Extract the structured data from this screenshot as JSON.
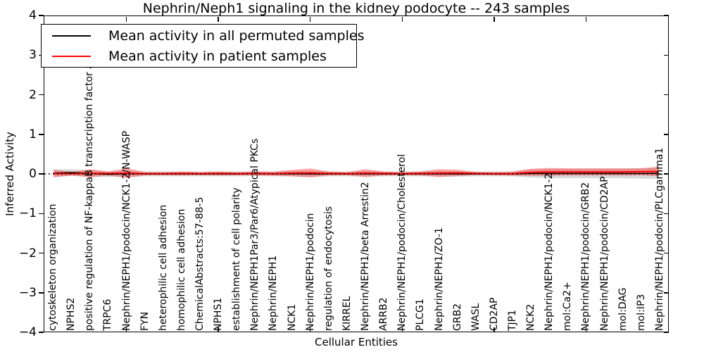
{
  "chart_data": {
    "type": "line",
    "title": "Nephrin/Neph1 signaling in the kidney podocyte -- 243 samples",
    "xlabel": "Cellular Entities",
    "ylabel": "Inferred Activity",
    "ylim": [
      -4,
      4
    ],
    "yticks": [
      4,
      3,
      2,
      1,
      0,
      -1,
      -2,
      -3,
      -4
    ],
    "ytick_labels": [
      "4",
      "3",
      "2",
      "1",
      "0",
      "−1",
      "−2",
      "−3",
      "−4"
    ],
    "grid": false,
    "legend_position": "upper left",
    "zero_line": {
      "value": 0,
      "style": "dotted",
      "color": "#000000"
    },
    "categories": [
      "cytoskeleton organization",
      "NPHS2",
      "positive regulation of NF-kappaB transcription factor a",
      "TRPC6",
      "Nephrin/NEPH1/podocin/NCK1-2/N-WASP",
      "FYN",
      "heterophilic cell adhesion",
      "homophilic cell adhesion",
      "ChemicalAbstracts:57-88-5",
      "NPHS1",
      "establishment of cell polarity",
      "Nephrin/NEPH1Par3/Par6/Atypical PKCs",
      "Nephrin/NEPH1",
      "NCK1",
      "Nephrin/NEPH1/podocin",
      "regulation of endocytosis",
      "KIRREL",
      "Nephrin/NEPH1/beta Arrestin2",
      "ARRB2",
      "Nephrin/NEPH1/podocin/Cholesterol",
      "PLCG1",
      "Nephrin/NEPH1/ZO-1",
      "GRB2",
      "WASL",
      "CD2AP",
      "TJP1",
      "NCK2",
      "Nephrin/NEPH1/podocin/NCK1-2",
      "mol:Ca2+",
      "Nephrin/NEPH1/podocin/GRB2",
      "Nephrin/NEPH1/podocin/CD2AP",
      "mol:DAG",
      "mol:IP3",
      "Nephrin/NEPH1/podocin/PLCgamma1"
    ],
    "series": [
      {
        "name": "Mean activity in all permuted samples",
        "color": "#000000",
        "band_color": "rgba(0,0,0,0.15)",
        "values": [
          0.02,
          0.035,
          0.01,
          -0.01,
          0.005,
          0,
          0,
          0,
          0,
          0,
          0,
          0.005,
          0,
          0.005,
          0,
          0,
          0,
          0.005,
          0,
          0,
          0,
          0.005,
          0,
          0,
          0,
          0,
          0.01,
          0.01,
          0.01,
          0.01,
          0.01,
          0.01,
          0.01,
          0.015
        ],
        "band_halfwidth": [
          0.1,
          0.08,
          0.08,
          0.07,
          0.08,
          0.06,
          0.06,
          0.06,
          0.06,
          0.06,
          0.06,
          0.06,
          0.06,
          0.07,
          0.08,
          0.06,
          0.06,
          0.07,
          0.06,
          0.06,
          0.06,
          0.07,
          0.07,
          0.06,
          0.06,
          0.06,
          0.1,
          0.12,
          0.12,
          0.12,
          0.12,
          0.12,
          0.13,
          0.14
        ]
      },
      {
        "name": "Mean activity in patient samples",
        "color": "#ff0000",
        "band_color": "rgba(255,0,0,0.35)",
        "values": [
          0.01,
          0.005,
          0.015,
          0.01,
          0.02,
          0.005,
          0.005,
          0.01,
          0.005,
          0.01,
          0.005,
          0.01,
          0.005,
          0.02,
          0.025,
          0.01,
          0.005,
          0.02,
          0.01,
          0.005,
          0.01,
          0.02,
          0.025,
          0.01,
          0.005,
          0.005,
          0.04,
          0.05,
          0.05,
          0.05,
          0.05,
          0.05,
          0.055,
          0.06
        ],
        "band_halfwidth": [
          0.09,
          0.05,
          0.1,
          0.05,
          0.12,
          0.04,
          0.04,
          0.05,
          0.04,
          0.05,
          0.04,
          0.05,
          0.05,
          0.08,
          0.11,
          0.05,
          0.04,
          0.1,
          0.05,
          0.04,
          0.05,
          0.1,
          0.08,
          0.04,
          0.04,
          0.05,
          0.09,
          0.1,
          0.09,
          0.09,
          0.09,
          0.09,
          0.09,
          0.12
        ]
      }
    ],
    "top_tick_category_indices": [
      4,
      9,
      14,
      19,
      24,
      29
    ]
  },
  "legend": {
    "entries": [
      {
        "label": "Mean activity in all permuted samples",
        "color": "#000000"
      },
      {
        "label": "Mean activity in patient samples",
        "color": "#ff0000"
      }
    ]
  }
}
